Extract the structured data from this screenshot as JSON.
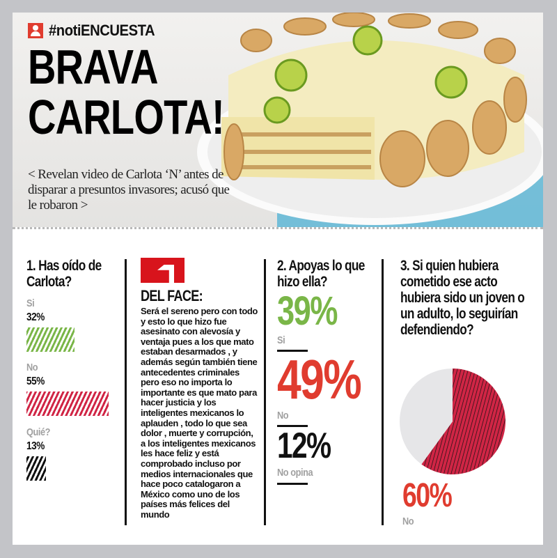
{
  "header": {
    "hashtag": "#notiENCUESTA",
    "headline_line1": "BRAVA",
    "headline_line2": "CARLOTA!",
    "deck": "< Revelan video de Carlota ‘N’ antes de disparar a presuntos invasores; acusó que le robaron >",
    "icon": "user-icon"
  },
  "colors": {
    "green": "#7ab648",
    "red": "#e03c2f",
    "crimson": "#d02545",
    "black": "#111111",
    "gray": "#a0a0a0"
  },
  "chart_data": [
    {
      "type": "bar",
      "title": "1. Has oído de Carlota?",
      "categories": [
        "Si",
        "No",
        "Quié?"
      ],
      "values": [
        32,
        55,
        13
      ],
      "value_labels": [
        "32%",
        "55%",
        "13%"
      ],
      "colors": [
        "#7ab648",
        "#d02545",
        "#111111"
      ]
    },
    {
      "type": "table",
      "title": "2. Apoyas lo que hizo ella?",
      "categories": [
        "Si",
        "No",
        "No opina"
      ],
      "values": [
        39,
        49,
        12
      ],
      "value_labels": [
        "39%",
        "49%",
        "12%"
      ],
      "colors": [
        "#7ab648",
        "#e03c2f",
        "#111111"
      ]
    },
    {
      "type": "pie",
      "title": "3. Si quien hubiera cometido ese acto hubiera sido un joven o un adulto, lo seguirían defendiendo?",
      "slices": [
        {
          "label": "No",
          "value": 60,
          "value_label": "60%",
          "color": "#d02545"
        },
        {
          "value": 40,
          "color": "#e6e6e8"
        }
      ]
    }
  ],
  "face": {
    "title": "DEL FACE:",
    "text": "Será el sereno pero con todo y esto lo que hizo fue asesinato con alevosía y ventaja pues a los que mato estaban desarmados , y además según también tiene antecedentes criminales pero eso no importa lo importante es que mato para hacer justicia y los inteligentes mexicanos lo aplauden , todo lo que sea dolor , muerte y corrupción, a los inteligentes mexicanos les hace feliz y está comprobado incluso por medios internacionales que hace poco catalogaron a México como uno de los países más felices del mundo",
    "icon": "facebook-icon"
  }
}
